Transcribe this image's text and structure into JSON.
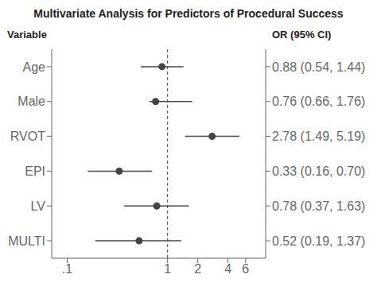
{
  "chart_data": {
    "type": "forest",
    "title": "Multivariate Analysis for Predictors of Procedural Success",
    "categories": [
      "Age",
      "Male",
      "RVOT",
      "EPI",
      "LV",
      "MULTI"
    ],
    "values": [
      0.88,
      0.76,
      2.78,
      0.33,
      0.78,
      0.52
    ],
    "ci_lower": [
      0.54,
      0.66,
      1.49,
      0.16,
      0.37,
      0.19
    ],
    "ci_upper": [
      1.44,
      1.76,
      5.19,
      0.7,
      1.63,
      1.37
    ],
    "value_labels": [
      "0.88 (0.54, 1.44)",
      "0.76 (0.66, 1.76)",
      "2.78 (1.49, 5.19)",
      "0.33 (0.16, 0.70)",
      "0.78 (0.37, 1.63)",
      "0.52 (0.19, 1.37)"
    ],
    "data_labels": true,
    "annotations": [
      "Variable",
      "OR (95% CI)"
    ],
    "ref_line": 1,
    "log": "x",
    "xlim": [
      0.07,
      9.5
    ],
    "xticks": [
      {
        "value": 0.1,
        "label": ".1"
      },
      1,
      2,
      4,
      6
    ],
    "grid": false,
    "color": "#444444"
  }
}
